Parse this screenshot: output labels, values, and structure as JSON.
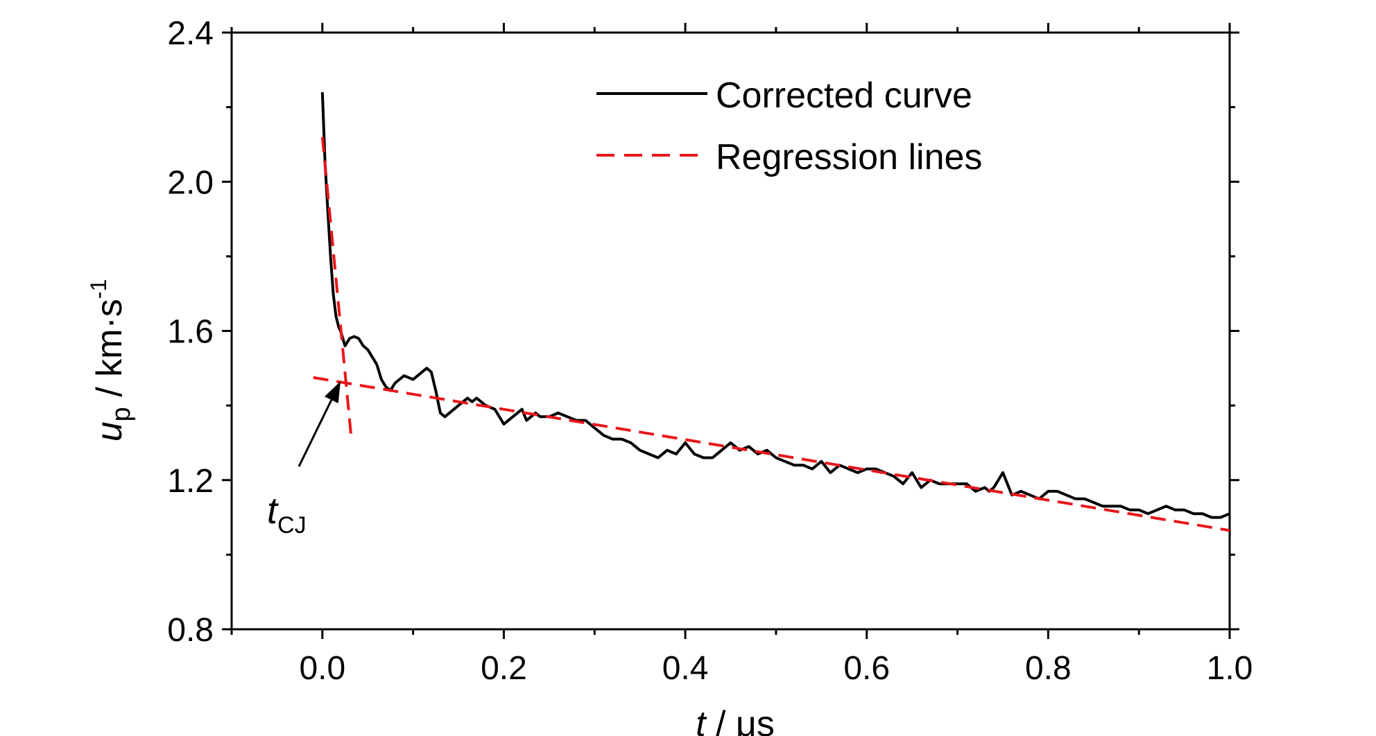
{
  "chart_data": {
    "type": "line",
    "xlabel": {
      "var": "t",
      "sep": " / ",
      "unit": "μs"
    },
    "ylabel": {
      "var": "u",
      "sub": "p",
      "sep": " / ",
      "unit": "km·s",
      "sup": "-1"
    },
    "xlim": [
      -0.1,
      1.0
    ],
    "ylim": [
      0.8,
      2.4
    ],
    "xticks": [
      0.0,
      0.2,
      0.4,
      0.6,
      0.8,
      1.0
    ],
    "xtick_labels": [
      "0.0",
      "0.2",
      "0.4",
      "0.6",
      "0.8",
      "1.0"
    ],
    "yticks": [
      0.8,
      1.2,
      1.6,
      2.0,
      2.4
    ],
    "ytick_labels": [
      "0.8",
      "1.2",
      "1.6",
      "2.0",
      "2.4"
    ],
    "grid": false,
    "legend_position": "top-right",
    "series": [
      {
        "name": "Corrected curve",
        "color": "#000000",
        "style": "solid",
        "x": [
          0.0,
          0.003,
          0.006,
          0.009,
          0.012,
          0.015,
          0.018,
          0.02,
          0.025,
          0.03,
          0.035,
          0.04,
          0.045,
          0.05,
          0.055,
          0.06,
          0.065,
          0.07,
          0.075,
          0.08,
          0.085,
          0.09,
          0.095,
          0.1,
          0.105,
          0.11,
          0.115,
          0.12,
          0.125,
          0.13,
          0.135,
          0.14,
          0.15,
          0.16,
          0.165,
          0.17,
          0.18,
          0.19,
          0.2,
          0.205,
          0.21,
          0.215,
          0.22,
          0.225,
          0.23,
          0.235,
          0.24,
          0.25,
          0.26,
          0.27,
          0.28,
          0.29,
          0.3,
          0.31,
          0.32,
          0.33,
          0.34,
          0.35,
          0.36,
          0.37,
          0.38,
          0.39,
          0.4,
          0.41,
          0.42,
          0.43,
          0.44,
          0.45,
          0.46,
          0.47,
          0.48,
          0.49,
          0.5,
          0.51,
          0.52,
          0.53,
          0.54,
          0.55,
          0.56,
          0.57,
          0.58,
          0.59,
          0.6,
          0.61,
          0.62,
          0.63,
          0.64,
          0.65,
          0.66,
          0.67,
          0.68,
          0.69,
          0.7,
          0.71,
          0.72,
          0.73,
          0.735,
          0.74,
          0.75,
          0.76,
          0.77,
          0.78,
          0.79,
          0.8,
          0.81,
          0.82,
          0.83,
          0.84,
          0.85,
          0.86,
          0.87,
          0.88,
          0.89,
          0.9,
          0.91,
          0.92,
          0.93,
          0.94,
          0.95,
          0.96,
          0.97,
          0.98,
          0.99,
          1.0
        ],
        "y": [
          2.24,
          2.05,
          1.92,
          1.8,
          1.7,
          1.64,
          1.61,
          1.6,
          1.56,
          1.58,
          1.585,
          1.58,
          1.56,
          1.55,
          1.53,
          1.51,
          1.47,
          1.45,
          1.44,
          1.46,
          1.47,
          1.48,
          1.475,
          1.47,
          1.48,
          1.49,
          1.5,
          1.49,
          1.44,
          1.38,
          1.37,
          1.38,
          1.4,
          1.42,
          1.41,
          1.42,
          1.4,
          1.39,
          1.35,
          1.36,
          1.37,
          1.38,
          1.39,
          1.36,
          1.37,
          1.38,
          1.37,
          1.37,
          1.38,
          1.37,
          1.36,
          1.36,
          1.34,
          1.32,
          1.31,
          1.31,
          1.3,
          1.28,
          1.27,
          1.26,
          1.28,
          1.27,
          1.3,
          1.27,
          1.26,
          1.26,
          1.28,
          1.3,
          1.28,
          1.29,
          1.27,
          1.28,
          1.26,
          1.25,
          1.24,
          1.24,
          1.23,
          1.25,
          1.22,
          1.24,
          1.23,
          1.22,
          1.23,
          1.23,
          1.22,
          1.21,
          1.19,
          1.22,
          1.18,
          1.2,
          1.19,
          1.19,
          1.19,
          1.19,
          1.17,
          1.18,
          1.17,
          1.18,
          1.22,
          1.16,
          1.17,
          1.16,
          1.15,
          1.17,
          1.17,
          1.16,
          1.15,
          1.15,
          1.14,
          1.13,
          1.13,
          1.13,
          1.12,
          1.12,
          1.11,
          1.12,
          1.13,
          1.12,
          1.12,
          1.11,
          1.11,
          1.1,
          1.1,
          1.11
        ]
      },
      {
        "name": "Regression lines",
        "color": "#e8161b",
        "style": "dashed",
        "segments": [
          {
            "x": [
              0.0,
              0.032
            ],
            "y": [
              2.12,
              1.31
            ]
          },
          {
            "x": [
              -0.01,
              1.0
            ],
            "y": [
              1.475,
              1.065
            ]
          }
        ]
      }
    ],
    "annotations": [
      {
        "label": "t",
        "sub": "CJ",
        "x": 0.02,
        "y": 1.465
      }
    ]
  }
}
